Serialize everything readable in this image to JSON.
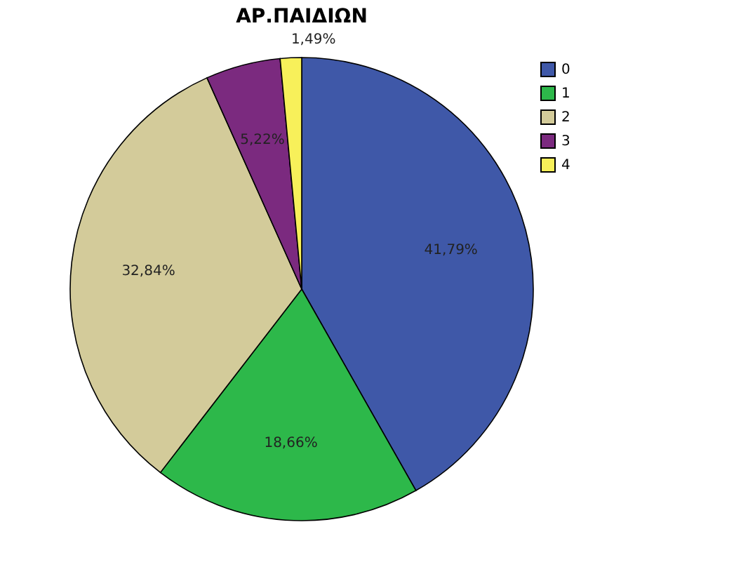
{
  "chart_data": {
    "type": "pie",
    "title": "ΑΡ.ΠΑΙΔΙΩΝ",
    "categories": [
      "0",
      "1",
      "2",
      "3",
      "4"
    ],
    "values": [
      41.79,
      18.66,
      32.84,
      5.22,
      1.49
    ],
    "colors": [
      "#3f58a8",
      "#2db84a",
      "#d3cb9a",
      "#7b2a7f",
      "#f7f05a"
    ],
    "value_labels": [
      "41,79%",
      "18,66%",
      "32,84%",
      "5,22%",
      "1,49%"
    ],
    "legend": "top right"
  }
}
